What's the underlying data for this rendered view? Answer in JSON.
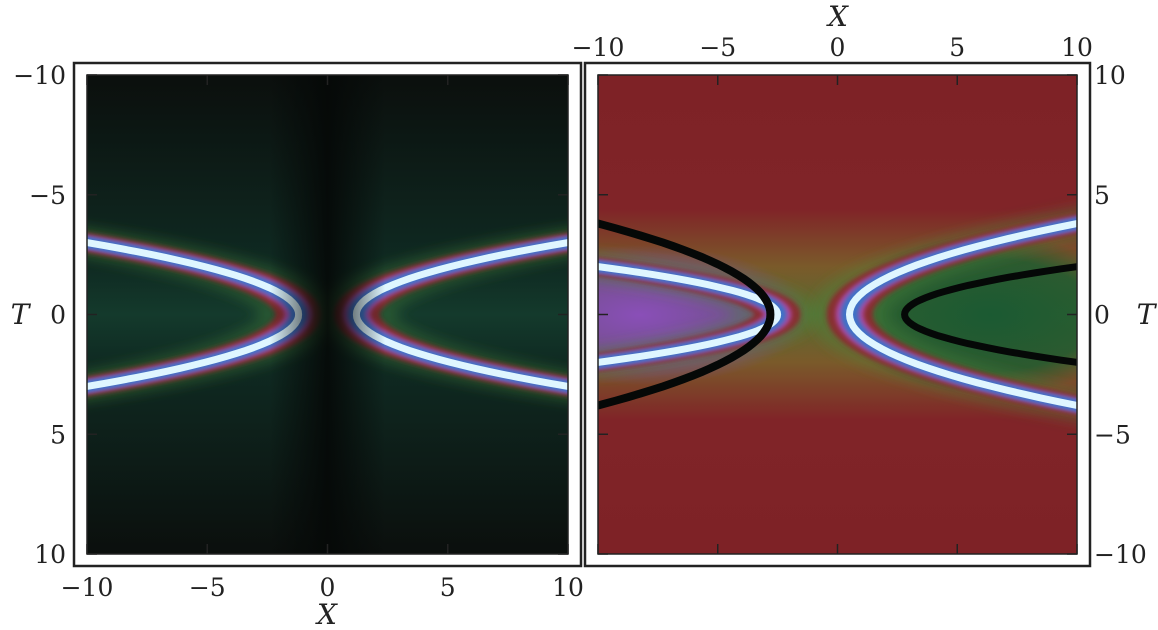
{
  "chart_data": [
    {
      "type": "heatmap",
      "panel": "left",
      "title": "",
      "xlabel": "X",
      "ylabel": "T",
      "xlim": [
        -10,
        10
      ],
      "ylim": [
        -10,
        10
      ],
      "xticks": [
        -10,
        -5,
        0,
        5,
        10
      ],
      "yticks": [
        -10,
        -5,
        0,
        5,
        10
      ],
      "xtick_labels": [
        "−10",
        "−5",
        "0",
        "5",
        "10"
      ],
      "ytick_labels": [
        "−10",
        "−5",
        "0",
        "5",
        "10"
      ],
      "x_axis_position": "bottom",
      "y_axis_position": "left",
      "grid": false,
      "colormap": "cubehelix",
      "background_color": "#0a0e0c",
      "description_value": "symmetric pair of parabolic bright ridges opening left and right, vertices near X=±1, arms reaching T=±3 at X=±10",
      "ridge": {
        "vertex_left": [
          -1.2,
          0
        ],
        "vertex_right": [
          1.2,
          0
        ],
        "arm_T_at_edge": 3
      }
    },
    {
      "type": "heatmap",
      "panel": "right",
      "title": "",
      "xlabel": "X",
      "ylabel": "T",
      "xlim": [
        -10,
        10
      ],
      "ylim": [
        -10,
        10
      ],
      "xticks": [
        -10,
        -5,
        0,
        5,
        10
      ],
      "yticks": [
        -10,
        -5,
        0,
        5,
        10
      ],
      "xtick_labels": [
        "−10",
        "−5",
        "0",
        "5",
        "10"
      ],
      "ytick_labels": [
        "10",
        "5",
        "0",
        "−5",
        "−10"
      ],
      "x_axis_position": "top",
      "y_axis_position": "right",
      "grid": false,
      "colormap": "cubehelix",
      "background_color": "#7f2226",
      "ridge": {
        "vertex_left": [
          -2.5,
          0
        ],
        "vertex_right": [
          0.5,
          0
        ],
        "left_arm_T_at_edge": 2,
        "right_arm_T_at_edge": 3.8
      }
    }
  ]
}
